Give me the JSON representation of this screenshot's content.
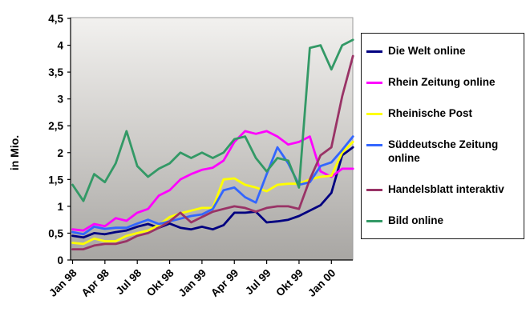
{
  "y_axis_title": "in Mio.",
  "chart_data": {
    "type": "line",
    "title": "",
    "ylabel": "in Mio.",
    "xlabel": "",
    "ylim": [
      0,
      4.5
    ],
    "y_tick_step": 0.5,
    "y_tick_labels": [
      "0",
      "0,5",
      "1",
      "1,5",
      "2",
      "2,5",
      "3",
      "3,5",
      "4",
      "4,5"
    ],
    "x_tick_labels": [
      "Jan 98",
      "Apr 98",
      "Jul 98",
      "Okt 98",
      "Jan 99",
      "Apr 99",
      "Jul 99",
      "Okt 99",
      "Jan 00"
    ],
    "x_tick_every": 3,
    "grid": false,
    "legend_position": "right",
    "plot_background": {
      "gradient_top": "#f2f1ef",
      "gradient_mid": "#cfcdca",
      "gradient_bottom": "#a8a6a3"
    },
    "categories": [
      "Jan 98",
      "Feb 98",
      "Mrz 98",
      "Apr 98",
      "Mai 98",
      "Jun 98",
      "Jul 98",
      "Aug 98",
      "Sep 98",
      "Okt 98",
      "Nov 98",
      "Dez 98",
      "Jan 99",
      "Feb 99",
      "Mrz 99",
      "Apr 99",
      "Mai 99",
      "Jun 99",
      "Jul 99",
      "Aug 99",
      "Sep 99",
      "Okt 99",
      "Nov 99",
      "Dez 99",
      "Jan 00",
      "Feb 00",
      "Mrz 00"
    ],
    "series": [
      {
        "name": "Die Welt online",
        "color": "#000080",
        "values": [
          0.45,
          0.42,
          0.5,
          0.48,
          0.52,
          0.55,
          0.62,
          0.67,
          0.6,
          0.68,
          0.6,
          0.57,
          0.62,
          0.57,
          0.65,
          0.88,
          0.88,
          0.9,
          0.7,
          0.72,
          0.75,
          0.82,
          0.92,
          1.02,
          1.25,
          1.95,
          2.1
        ]
      },
      {
        "name": "Rhein Zeitung online",
        "color": "#FF00FF",
        "values": [
          0.57,
          0.55,
          0.67,
          0.63,
          0.78,
          0.73,
          0.88,
          0.95,
          1.2,
          1.3,
          1.5,
          1.6,
          1.68,
          1.72,
          1.85,
          2.2,
          2.4,
          2.35,
          2.4,
          2.3,
          2.15,
          2.2,
          2.3,
          1.65,
          1.55,
          1.7,
          1.7
        ]
      },
      {
        "name": "Rheinische Post",
        "color": "#FFFF00",
        "values": [
          0.32,
          0.3,
          0.4,
          0.35,
          0.35,
          0.45,
          0.5,
          0.55,
          0.65,
          0.8,
          0.87,
          0.92,
          0.97,
          0.97,
          1.5,
          1.52,
          1.4,
          1.35,
          1.28,
          1.4,
          1.42,
          1.42,
          1.5,
          1.55,
          1.57,
          2.0,
          2.2
        ]
      },
      {
        "name": "Süddeutsche Zeitung online",
        "color": "#3366FF",
        "values": [
          0.52,
          0.48,
          0.62,
          0.58,
          0.6,
          0.6,
          0.68,
          0.75,
          0.67,
          0.72,
          0.77,
          0.82,
          0.85,
          0.95,
          1.3,
          1.35,
          1.17,
          1.07,
          1.6,
          2.1,
          1.8,
          1.4,
          1.45,
          1.75,
          1.82,
          2.05,
          2.3
        ]
      },
      {
        "name": "Handelsblatt interaktiv",
        "color": "#993366",
        "values": [
          0.2,
          0.2,
          0.27,
          0.3,
          0.3,
          0.35,
          0.45,
          0.5,
          0.6,
          0.72,
          0.88,
          0.7,
          0.8,
          0.9,
          0.95,
          1.0,
          0.97,
          0.9,
          0.97,
          1.0,
          1.0,
          0.95,
          1.5,
          1.95,
          2.1,
          3.05,
          3.8
        ]
      },
      {
        "name": "Bild online",
        "color": "#339966",
        "values": [
          1.4,
          1.1,
          1.6,
          1.45,
          1.8,
          2.4,
          1.75,
          1.55,
          1.7,
          1.8,
          2.0,
          1.9,
          2.0,
          1.9,
          2.0,
          2.25,
          2.3,
          1.9,
          1.65,
          1.9,
          1.85,
          1.35,
          3.95,
          4.0,
          3.55,
          4.0,
          4.1
        ]
      }
    ]
  }
}
